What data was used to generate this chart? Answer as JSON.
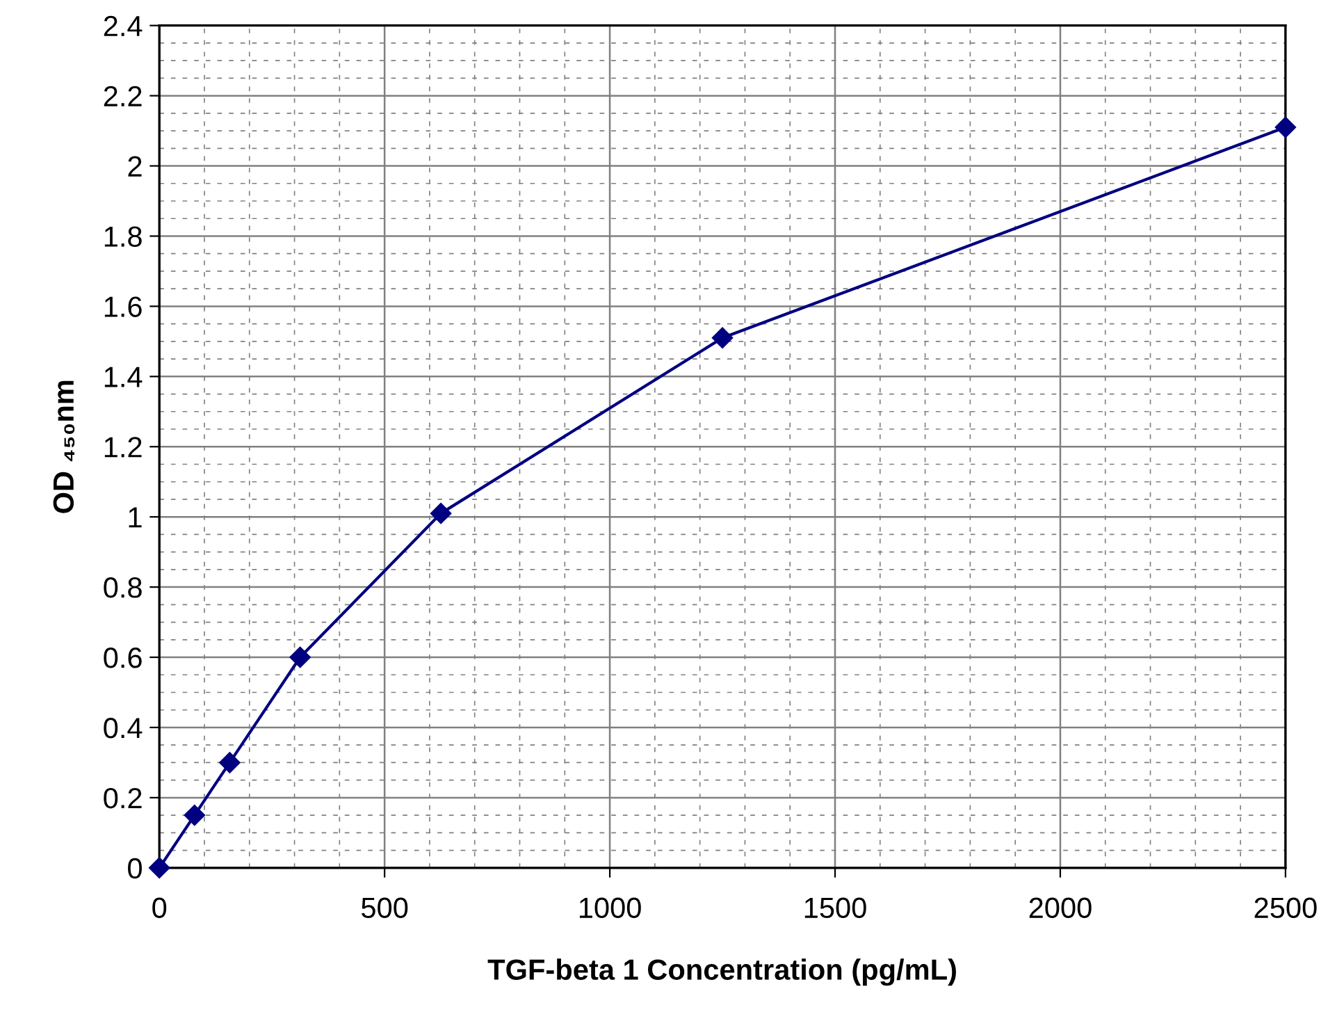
{
  "chart_data": {
    "type": "line",
    "xlabel": "TGF-beta 1 Concentration (pg/mL)",
    "ylabel": "OD ₄₅₀nm",
    "x": [
      0,
      78.125,
      156.25,
      312.5,
      625,
      1250,
      2500
    ],
    "series": [
      {
        "color": "#000080",
        "values": [
          0,
          0.15,
          0.3,
          0.6,
          1.01,
          1.51,
          2.11
        ]
      }
    ],
    "marker": "diamond",
    "line_style": "solid",
    "xlim": [
      0,
      2500
    ],
    "xticks": [
      0,
      500,
      1000,
      1500,
      2000,
      2500
    ],
    "ylim": [
      0,
      2.4
    ],
    "yticks": [
      0,
      0.2,
      0.4,
      0.6,
      0.8,
      1,
      1.2,
      1.4,
      1.6,
      1.8,
      2,
      2.2,
      2.4
    ],
    "grid": true,
    "legend": false
  }
}
